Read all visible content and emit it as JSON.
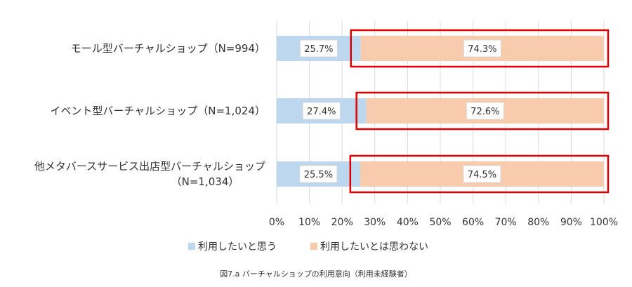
{
  "chart_data": {
    "type": "bar",
    "orientation": "horizontal",
    "stacked": true,
    "categories": [
      [
        "モール型バーチャルショップ（N=994）"
      ],
      [
        "イベント型バーチャルショップ（N=1,024）"
      ],
      [
        "他メタバースサービス出店型バーチャルショップ",
        "（N=1,034）"
      ]
    ],
    "series": [
      {
        "name": "利用したいと思う",
        "values": [
          25.7,
          27.4,
          25.5
        ],
        "labels": [
          "25.7%",
          "27.4%",
          "25.5%"
        ],
        "color": "#bdd7ee"
      },
      {
        "name": "利用したいとは思わない",
        "values": [
          74.3,
          72.6,
          74.5
        ],
        "labels": [
          "74.3%",
          "72.6%",
          "74.5%"
        ],
        "color": "#f8cbad"
      }
    ],
    "xlim": [
      0,
      100
    ],
    "x_ticks": [
      "0%",
      "10%",
      "20%",
      "30%",
      "40%",
      "50%",
      "60%",
      "70%",
      "80%",
      "90%",
      "100%"
    ],
    "grid": true,
    "legend": "bottom",
    "highlight_series": 1,
    "highlight_color": "#e00000",
    "title": "",
    "xlabel": "",
    "ylabel": ""
  },
  "caption": "図7.a バーチャルショップの利用意向（利用未経験者）"
}
